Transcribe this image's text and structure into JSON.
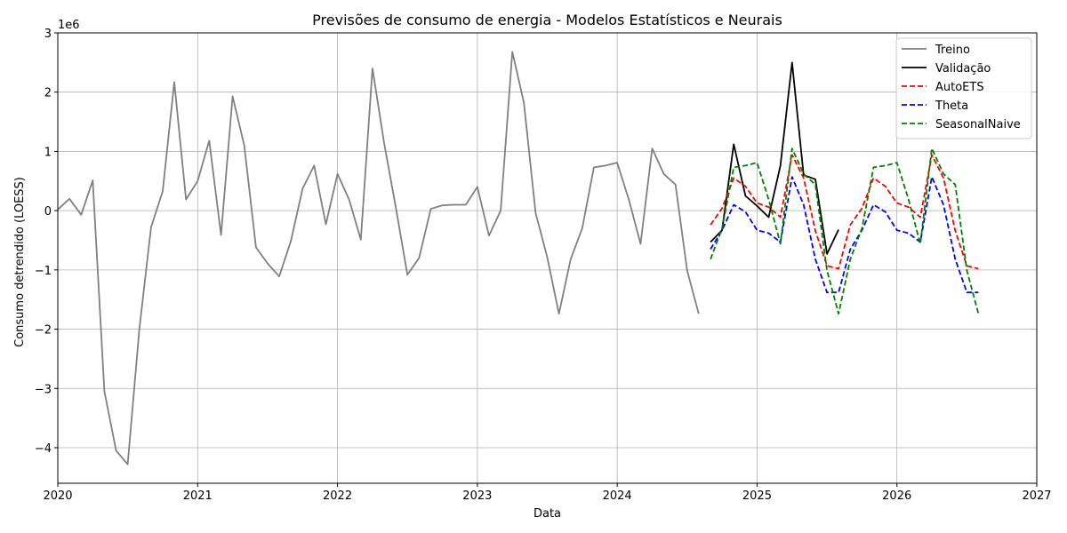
{
  "chart_data": {
    "type": "line",
    "title": "Previsões de consumo de energia - Modelos Estatísticos e Neurais",
    "xlabel": "Data",
    "ylabel": "Consumo detrendido (LOESS)",
    "y_offset_label": "1e6",
    "xlim": [
      2020,
      2027
    ],
    "ylim": [
      -4.6,
      3.0
    ],
    "y_unit_multiplier": 1000000,
    "grid": true,
    "legend_position": "top-right",
    "x_ticks": [
      {
        "value": 2020,
        "label": "2020"
      },
      {
        "value": 2021,
        "label": "2021"
      },
      {
        "value": 2022,
        "label": "2022"
      },
      {
        "value": 2023,
        "label": "2023"
      },
      {
        "value": 2024,
        "label": "2024"
      },
      {
        "value": 2025,
        "label": "2025"
      },
      {
        "value": 2026,
        "label": "2026"
      },
      {
        "value": 2027,
        "label": "2027"
      }
    ],
    "y_ticks": [
      {
        "value": 3,
        "label": "3"
      },
      {
        "value": 2,
        "label": "2"
      },
      {
        "value": 1,
        "label": "1"
      },
      {
        "value": 0,
        "label": "0"
      },
      {
        "value": -1,
        "label": "−1"
      },
      {
        "value": -2,
        "label": "−2"
      },
      {
        "value": -3,
        "label": "−3"
      },
      {
        "value": -4,
        "label": "−4"
      }
    ],
    "series": [
      {
        "name": "Treino",
        "color": "#808080",
        "dash": "solid",
        "x": [
          2020.0,
          2020.083,
          2020.167,
          2020.25,
          2020.333,
          2020.417,
          2020.5,
          2020.583,
          2020.667,
          2020.75,
          2020.833,
          2020.917,
          2021.0,
          2021.083,
          2021.167,
          2021.25,
          2021.333,
          2021.417,
          2021.5,
          2021.583,
          2021.667,
          2021.75,
          2021.833,
          2021.917,
          2022.0,
          2022.083,
          2022.167,
          2022.25,
          2022.333,
          2022.417,
          2022.5,
          2022.583,
          2022.667,
          2022.75,
          2022.833,
          2022.917,
          2023.0,
          2023.083,
          2023.167,
          2023.25,
          2023.333,
          2023.417,
          2023.5,
          2023.583,
          2023.667,
          2023.75,
          2023.833,
          2023.917,
          2024.0,
          2024.083,
          2024.167,
          2024.25,
          2024.333,
          2024.417,
          2024.5,
          2024.583
        ],
        "y": [
          0.02,
          0.2,
          -0.07,
          0.51,
          -3.05,
          -4.05,
          -4.28,
          -2.0,
          -0.28,
          0.33,
          2.17,
          0.19,
          0.5,
          1.18,
          -0.41,
          1.93,
          1.1,
          -0.62,
          -0.89,
          -1.11,
          -0.51,
          0.37,
          0.76,
          -0.23,
          0.62,
          0.19,
          -0.49,
          2.4,
          1.15,
          0.05,
          -1.08,
          -0.8,
          0.03,
          0.09,
          0.1,
          0.1,
          0.4,
          -0.42,
          0.0,
          2.68,
          1.82,
          -0.04,
          -0.79,
          -1.74,
          -0.82,
          -0.3,
          0.73,
          0.76,
          0.81,
          0.19,
          -0.56,
          1.05,
          0.62,
          0.44,
          -1.01,
          -1.74
        ]
      },
      {
        "name": "Validação",
        "color": "#000000",
        "dash": "solid",
        "x": [
          2024.667,
          2024.75,
          2024.833,
          2024.917,
          2025.0,
          2025.083,
          2025.167,
          2025.25,
          2025.333,
          2025.417,
          2025.5,
          2025.583
        ],
        "y": [
          -0.53,
          -0.33,
          1.12,
          0.25,
          0.08,
          -0.11,
          0.76,
          2.5,
          0.6,
          0.53,
          -0.73,
          -0.32
        ]
      },
      {
        "name": "AutoETS",
        "color": "#ff0000",
        "dash": "dashed",
        "x": [
          2024.667,
          2024.75,
          2024.833,
          2024.917,
          2025.0,
          2025.083,
          2025.167,
          2025.25,
          2025.333,
          2025.417,
          2025.5,
          2025.583,
          2025.667,
          2025.75,
          2025.833,
          2025.917,
          2026.0,
          2026.083,
          2026.167,
          2026.25,
          2026.333,
          2026.417,
          2026.5,
          2026.583
        ],
        "y": [
          -0.24,
          0.04,
          0.55,
          0.41,
          0.13,
          0.06,
          -0.11,
          0.94,
          0.55,
          -0.34,
          -0.93,
          -0.98,
          -0.24,
          0.04,
          0.55,
          0.41,
          0.13,
          0.06,
          -0.11,
          0.94,
          0.55,
          -0.34,
          -0.93,
          -0.98
        ]
      },
      {
        "name": "Theta",
        "color": "#0000ff",
        "dash": "dashed",
        "x": [
          2024.667,
          2024.75,
          2024.833,
          2024.917,
          2025.0,
          2025.083,
          2025.167,
          2025.25,
          2025.333,
          2025.417,
          2025.5,
          2025.583,
          2025.667,
          2025.75,
          2025.833,
          2025.917,
          2026.0,
          2026.083,
          2026.167,
          2026.25,
          2026.333,
          2026.417,
          2026.5,
          2026.583
        ],
        "y": [
          -0.65,
          -0.33,
          0.1,
          -0.02,
          -0.33,
          -0.38,
          -0.53,
          0.57,
          0.1,
          -0.82,
          -1.38,
          -1.38,
          -0.65,
          -0.33,
          0.1,
          -0.02,
          -0.33,
          -0.38,
          -0.53,
          0.57,
          0.1,
          -0.82,
          -1.38,
          -1.38
        ]
      },
      {
        "name": "SeasonalNaive",
        "color": "#008000",
        "dash": "dashed",
        "x": [
          2024.667,
          2024.75,
          2024.833,
          2024.917,
          2025.0,
          2025.083,
          2025.167,
          2025.25,
          2025.333,
          2025.417,
          2025.5,
          2025.583,
          2025.667,
          2025.75,
          2025.833,
          2025.917,
          2026.0,
          2026.083,
          2026.167,
          2026.25,
          2026.333,
          2026.417,
          2026.5,
          2026.583
        ],
        "y": [
          -0.82,
          -0.3,
          0.73,
          0.76,
          0.81,
          0.19,
          -0.56,
          1.05,
          0.62,
          0.44,
          -1.01,
          -1.74,
          -0.82,
          -0.3,
          0.73,
          0.76,
          0.81,
          0.19,
          -0.56,
          1.05,
          0.62,
          0.44,
          -1.01,
          -1.74
        ]
      }
    ]
  }
}
